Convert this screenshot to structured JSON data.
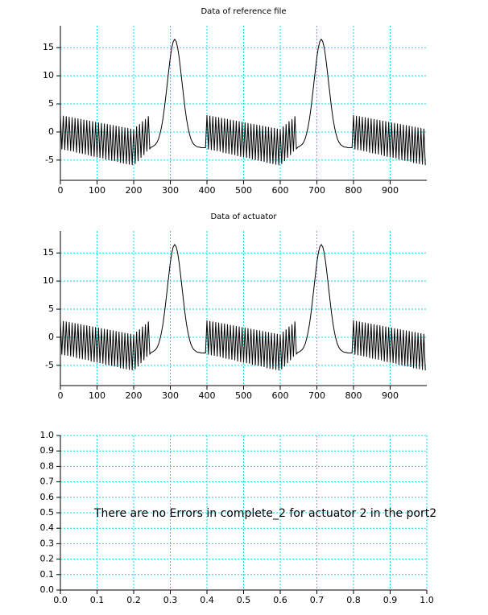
{
  "chart_data": [
    {
      "type": "line",
      "title": "Data of reference file",
      "color": "#000000",
      "grid": true,
      "grid_color": "#00e0f0",
      "xlim": [
        0,
        1000
      ],
      "xticks": [
        0,
        100,
        200,
        300,
        400,
        500,
        600,
        700,
        800,
        900
      ],
      "ylim": [
        -8.6,
        18.9
      ],
      "yticks": [
        -5,
        0,
        5,
        10,
        15
      ],
      "x": [
        0,
        4,
        8,
        12,
        16,
        20,
        24,
        28,
        32,
        36,
        40,
        44,
        48,
        52,
        56,
        60,
        64,
        68,
        72,
        76,
        80,
        84,
        88,
        92,
        96,
        100,
        104,
        108,
        112,
        116,
        120,
        124,
        128,
        132,
        136,
        140,
        144,
        148,
        152,
        156,
        160,
        164,
        168,
        172,
        176,
        180,
        184,
        188,
        192,
        196,
        200,
        204,
        208,
        212,
        216,
        220,
        224,
        228,
        232,
        236,
        240,
        244,
        248,
        252,
        256,
        260,
        264,
        268,
        272,
        276,
        280,
        284,
        288,
        292,
        296,
        300,
        304,
        308,
        312,
        316,
        320,
        324,
        328,
        332,
        336,
        340,
        344,
        348,
        352,
        356,
        360,
        364,
        368,
        372,
        376,
        380,
        384,
        388,
        392,
        396,
        400,
        404,
        408,
        412,
        416,
        420,
        424,
        428,
        432,
        436,
        440,
        444,
        448,
        452,
        456,
        460,
        464,
        468,
        472,
        476,
        480,
        484,
        488,
        492,
        496,
        500,
        504,
        508,
        512,
        516,
        520,
        524,
        528,
        532,
        536,
        540,
        544,
        548,
        552,
        556,
        560,
        564,
        568,
        572,
        576,
        580,
        584,
        588,
        592,
        596,
        600,
        604,
        608,
        612,
        616,
        620,
        624,
        628,
        632,
        636,
        640,
        644,
        648,
        652,
        656,
        660,
        664,
        668,
        672,
        676,
        680,
        684,
        688,
        692,
        696,
        700,
        704,
        708,
        712,
        716,
        720,
        724,
        728,
        732,
        736,
        740,
        744,
        748,
        752,
        756,
        760,
        764,
        768,
        772,
        776,
        780,
        784,
        788,
        792,
        796,
        800,
        804,
        808,
        812,
        816,
        820,
        824,
        828,
        832,
        836,
        840,
        844,
        848,
        852,
        856,
        860,
        864,
        868,
        872,
        876,
        880,
        884,
        888,
        892,
        896,
        900,
        904,
        908,
        912,
        916,
        920,
        924,
        928,
        932,
        936,
        940,
        944,
        948,
        952,
        956,
        960,
        964,
        968,
        972,
        976,
        980,
        984,
        988,
        992,
        996
      ],
      "values": [
        3.0,
        -3.1,
        2.9,
        -3.2,
        2.8,
        -3.3,
        2.7,
        -3.4,
        2.6,
        -3.5,
        2.5,
        -3.7,
        2.4,
        -3.8,
        2.3,
        -3.9,
        2.2,
        -4.0,
        2.1,
        -4.1,
        2.0,
        -4.3,
        1.9,
        -4.4,
        1.8,
        -4.5,
        1.7,
        -4.6,
        1.6,
        -4.7,
        1.5,
        -4.9,
        1.4,
        -5.0,
        1.3,
        -5.1,
        1.2,
        -5.2,
        1.1,
        -5.3,
        1.0,
        -5.5,
        0.9,
        -5.6,
        0.8,
        -5.7,
        0.7,
        -5.8,
        0.6,
        -5.9,
        0.5,
        -5.7,
        1.0,
        -5.2,
        1.4,
        -4.6,
        1.9,
        -4.1,
        2.3,
        -3.5,
        2.8,
        -3.0,
        -2.7,
        -2.6,
        -2.4,
        -2.2,
        -1.8,
        -1.2,
        -0.3,
        0.9,
        2.4,
        4.3,
        6.5,
        8.8,
        11.1,
        13.3,
        15.0,
        16.1,
        16.5,
        16.1,
        15.0,
        13.3,
        11.1,
        8.8,
        6.5,
        4.3,
        2.4,
        0.9,
        -0.3,
        -1.2,
        -1.8,
        -2.2,
        -2.4,
        -2.6,
        -2.7,
        -2.7,
        -2.8,
        -2.8,
        -2.8,
        -2.8,
        3.0,
        -3.1,
        2.9,
        -3.2,
        2.8,
        -3.3,
        2.7,
        -3.4,
        2.6,
        -3.5,
        2.5,
        -3.7,
        2.4,
        -3.8,
        2.3,
        -3.9,
        2.2,
        -4.0,
        2.1,
        -4.1,
        2.0,
        -4.3,
        1.9,
        -4.4,
        1.8,
        -4.5,
        1.7,
        -4.6,
        1.6,
        -4.7,
        1.5,
        -4.9,
        1.4,
        -5.0,
        1.3,
        -5.1,
        1.2,
        -5.2,
        1.1,
        -5.3,
        1.0,
        -5.5,
        0.9,
        -5.6,
        0.8,
        -5.7,
        0.7,
        -5.8,
        0.6,
        -5.9,
        0.5,
        -5.7,
        1.0,
        -5.2,
        1.4,
        -4.6,
        1.9,
        -4.1,
        2.3,
        -3.5,
        2.8,
        -3.0,
        -2.7,
        -2.6,
        -2.4,
        -2.2,
        -1.8,
        -1.2,
        -0.3,
        0.9,
        2.4,
        4.3,
        6.5,
        8.8,
        11.1,
        13.3,
        15.0,
        16.1,
        16.5,
        16.1,
        15.0,
        13.3,
        11.1,
        8.8,
        6.5,
        4.3,
        2.4,
        0.9,
        -0.3,
        -1.2,
        -1.8,
        -2.2,
        -2.4,
        -2.6,
        -2.7,
        -2.7,
        -2.8,
        -2.8,
        -2.8,
        -2.8,
        3.0,
        -3.1,
        2.9,
        -3.2,
        2.8,
        -3.3,
        2.7,
        -3.4,
        2.6,
        -3.5,
        2.5,
        -3.7,
        2.4,
        -3.8,
        2.3,
        -3.9,
        2.2,
        -4.0,
        2.1,
        -4.1,
        2.0,
        -4.3,
        1.9,
        -4.4,
        1.8,
        -4.5,
        1.7,
        -4.6,
        1.6,
        -4.7,
        1.5,
        -4.9,
        1.4,
        -5.0,
        1.3,
        -5.1,
        1.2,
        -5.2,
        1.1,
        -5.3,
        1.0,
        -5.5,
        0.9,
        -5.6,
        0.8,
        -5.7,
        0.7,
        -5.8,
        0.6,
        -5.9
      ]
    },
    {
      "type": "line",
      "title": "Data of actuator",
      "color": "#000000",
      "grid": true,
      "grid_color": "#00e0f0",
      "xlim": [
        0,
        1000
      ],
      "xticks": [
        0,
        100,
        200,
        300,
        400,
        500,
        600,
        700,
        800,
        900
      ],
      "ylim": [
        -8.6,
        18.9
      ],
      "yticks": [
        -5,
        0,
        5,
        10,
        15
      ],
      "x": [
        0,
        4,
        8,
        12,
        16,
        20,
        24,
        28,
        32,
        36,
        40,
        44,
        48,
        52,
        56,
        60,
        64,
        68,
        72,
        76,
        80,
        84,
        88,
        92,
        96,
        100,
        104,
        108,
        112,
        116,
        120,
        124,
        128,
        132,
        136,
        140,
        144,
        148,
        152,
        156,
        160,
        164,
        168,
        172,
        176,
        180,
        184,
        188,
        192,
        196,
        200,
        204,
        208,
        212,
        216,
        220,
        224,
        228,
        232,
        236,
        240,
        244,
        248,
        252,
        256,
        260,
        264,
        268,
        272,
        276,
        280,
        284,
        288,
        292,
        296,
        300,
        304,
        308,
        312,
        316,
        320,
        324,
        328,
        332,
        336,
        340,
        344,
        348,
        352,
        356,
        360,
        364,
        368,
        372,
        376,
        380,
        384,
        388,
        392,
        396,
        400,
        404,
        408,
        412,
        416,
        420,
        424,
        428,
        432,
        436,
        440,
        444,
        448,
        452,
        456,
        460,
        464,
        468,
        472,
        476,
        480,
        484,
        488,
        492,
        496,
        500,
        504,
        508,
        512,
        516,
        520,
        524,
        528,
        532,
        536,
        540,
        544,
        548,
        552,
        556,
        560,
        564,
        568,
        572,
        576,
        580,
        584,
        588,
        592,
        596,
        600,
        604,
        608,
        612,
        616,
        620,
        624,
        628,
        632,
        636,
        640,
        644,
        648,
        652,
        656,
        660,
        664,
        668,
        672,
        676,
        680,
        684,
        688,
        692,
        696,
        700,
        704,
        708,
        712,
        716,
        720,
        724,
        728,
        732,
        736,
        740,
        744,
        748,
        752,
        756,
        760,
        764,
        768,
        772,
        776,
        780,
        784,
        788,
        792,
        796,
        800,
        804,
        808,
        812,
        816,
        820,
        824,
        828,
        832,
        836,
        840,
        844,
        848,
        852,
        856,
        860,
        864,
        868,
        872,
        876,
        880,
        884,
        888,
        892,
        896,
        900,
        904,
        908,
        912,
        916,
        920,
        924,
        928,
        932,
        936,
        940,
        944,
        948,
        952,
        956,
        960,
        964,
        968,
        972,
        976,
        980,
        984,
        988,
        992,
        996
      ],
      "values": [
        3.0,
        -3.1,
        2.9,
        -3.2,
        2.8,
        -3.3,
        2.7,
        -3.4,
        2.6,
        -3.5,
        2.5,
        -3.7,
        2.4,
        -3.8,
        2.3,
        -3.9,
        2.2,
        -4.0,
        2.1,
        -4.1,
        2.0,
        -4.3,
        1.9,
        -4.4,
        1.8,
        -4.5,
        1.7,
        -4.6,
        1.6,
        -4.7,
        1.5,
        -4.9,
        1.4,
        -5.0,
        1.3,
        -5.1,
        1.2,
        -5.2,
        1.1,
        -5.3,
        1.0,
        -5.5,
        0.9,
        -5.6,
        0.8,
        -5.7,
        0.7,
        -5.8,
        0.6,
        -5.9,
        0.5,
        -5.7,
        1.0,
        -5.2,
        1.4,
        -4.6,
        1.9,
        -4.1,
        2.3,
        -3.5,
        2.8,
        -3.0,
        -2.7,
        -2.6,
        -2.4,
        -2.2,
        -1.8,
        -1.2,
        -0.3,
        0.9,
        2.4,
        4.3,
        6.5,
        8.8,
        11.1,
        13.3,
        15.0,
        16.1,
        16.5,
        16.1,
        15.0,
        13.3,
        11.1,
        8.8,
        6.5,
        4.3,
        2.4,
        0.9,
        -0.3,
        -1.2,
        -1.8,
        -2.2,
        -2.4,
        -2.6,
        -2.7,
        -2.7,
        -2.8,
        -2.8,
        -2.8,
        -2.8,
        3.0,
        -3.1,
        2.9,
        -3.2,
        2.8,
        -3.3,
        2.7,
        -3.4,
        2.6,
        -3.5,
        2.5,
        -3.7,
        2.4,
        -3.8,
        2.3,
        -3.9,
        2.2,
        -4.0,
        2.1,
        -4.1,
        2.0,
        -4.3,
        1.9,
        -4.4,
        1.8,
        -4.5,
        1.7,
        -4.6,
        1.6,
        -4.7,
        1.5,
        -4.9,
        1.4,
        -5.0,
        1.3,
        -5.1,
        1.2,
        -5.2,
        1.1,
        -5.3,
        1.0,
        -5.5,
        0.9,
        -5.6,
        0.8,
        -5.7,
        0.7,
        -5.8,
        0.6,
        -5.9,
        0.5,
        -5.7,
        1.0,
        -5.2,
        1.4,
        -4.6,
        1.9,
        -4.1,
        2.3,
        -3.5,
        2.8,
        -3.0,
        -2.7,
        -2.6,
        -2.4,
        -2.2,
        -1.8,
        -1.2,
        -0.3,
        0.9,
        2.4,
        4.3,
        6.5,
        8.8,
        11.1,
        13.3,
        15.0,
        16.1,
        16.5,
        16.1,
        15.0,
        13.3,
        11.1,
        8.8,
        6.5,
        4.3,
        2.4,
        0.9,
        -0.3,
        -1.2,
        -1.8,
        -2.2,
        -2.4,
        -2.6,
        -2.7,
        -2.7,
        -2.8,
        -2.8,
        -2.8,
        -2.8,
        3.0,
        -3.1,
        2.9,
        -3.2,
        2.8,
        -3.3,
        2.7,
        -3.4,
        2.6,
        -3.5,
        2.5,
        -3.7,
        2.4,
        -3.8,
        2.3,
        -3.9,
        2.2,
        -4.0,
        2.1,
        -4.1,
        2.0,
        -4.3,
        1.9,
        -4.4,
        1.8,
        -4.5,
        1.7,
        -4.6,
        1.6,
        -4.7,
        1.5,
        -4.9,
        1.4,
        -5.0,
        1.3,
        -5.1,
        1.2,
        -5.2,
        1.1,
        -5.3,
        1.0,
        -5.5,
        0.9,
        -5.6,
        0.8,
        -5.7,
        0.7,
        -5.8,
        0.6,
        -5.9
      ]
    },
    {
      "type": "text",
      "annotation": "There are no Errors in complete_2 for actuator 2 in the port2",
      "grid": true,
      "grid_color": "#00e0f0",
      "xlim": [
        0,
        1
      ],
      "xticks": [
        {
          "value": 0,
          "label": "0.0"
        },
        0.1,
        0.2,
        0.3,
        0.4,
        0.5,
        0.6,
        0.7,
        0.8,
        0.9,
        {
          "value": 1,
          "label": "1.0"
        }
      ],
      "ylim": [
        0,
        1
      ],
      "yticks": [
        {
          "value": 0,
          "label": "0.0"
        },
        0.1,
        0.2,
        0.3,
        0.4,
        0.5,
        0.6,
        0.7,
        0.8,
        0.9,
        {
          "value": 1,
          "label": "1.0"
        }
      ]
    }
  ]
}
